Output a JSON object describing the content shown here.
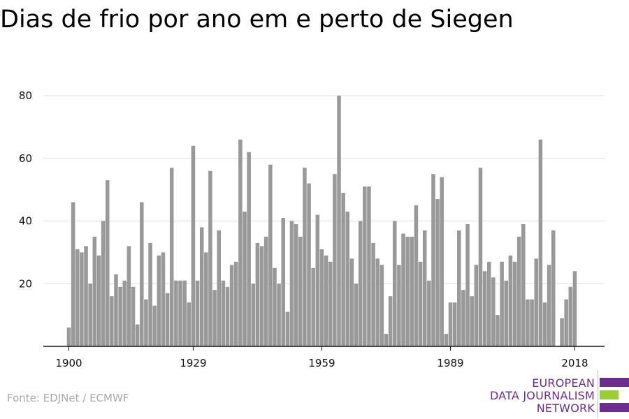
{
  "title": "Dias de frio por ano em e perto de Siegen",
  "source": "Fonte: EDJNet / ECMWF",
  "logo": {
    "line1": "EUROPEAN",
    "line2": "DATA JOURNALISM",
    "line3": "NETWORK",
    "color_purple": "#6c2d8f",
    "color_green": "#9acd32"
  },
  "chart_data": {
    "type": "bar",
    "title": "Dias de frio por ano em e perto de Siegen",
    "xlabel": "",
    "ylabel": "",
    "x_start": 1900,
    "x_end": 2018,
    "x_ticks": [
      "1900",
      "1929",
      "1959",
      "1989",
      "2018"
    ],
    "y_ticks": [
      "20",
      "40",
      "60",
      "80"
    ],
    "ylim": [
      0,
      80
    ],
    "grid": true,
    "bar_color": "#999999",
    "values": [
      6,
      46,
      31,
      30,
      32,
      20,
      35,
      29,
      40,
      53,
      16,
      23,
      19,
      21,
      32,
      19,
      7,
      46,
      15,
      33,
      13,
      29,
      30,
      17,
      57,
      21,
      21,
      21,
      14,
      64,
      21,
      38,
      30,
      56,
      18,
      37,
      21,
      19,
      26,
      27,
      66,
      43,
      62,
      20,
      33,
      32,
      35,
      58,
      25,
      20,
      41,
      11,
      40,
      39,
      35,
      57,
      52,
      25,
      42,
      31,
      29,
      27,
      55,
      80,
      49,
      43,
      28,
      20,
      40,
      51,
      51,
      33,
      28,
      26,
      4,
      16,
      40,
      26,
      36,
      35,
      35,
      45,
      27,
      37,
      21,
      55,
      47,
      54,
      4,
      14,
      14,
      37,
      18,
      39,
      16,
      26,
      57,
      24,
      27,
      22,
      10,
      27,
      21,
      29,
      27,
      35,
      39,
      15,
      15,
      28,
      66,
      14,
      26,
      37,
      0,
      9,
      15,
      19,
      24
    ]
  }
}
